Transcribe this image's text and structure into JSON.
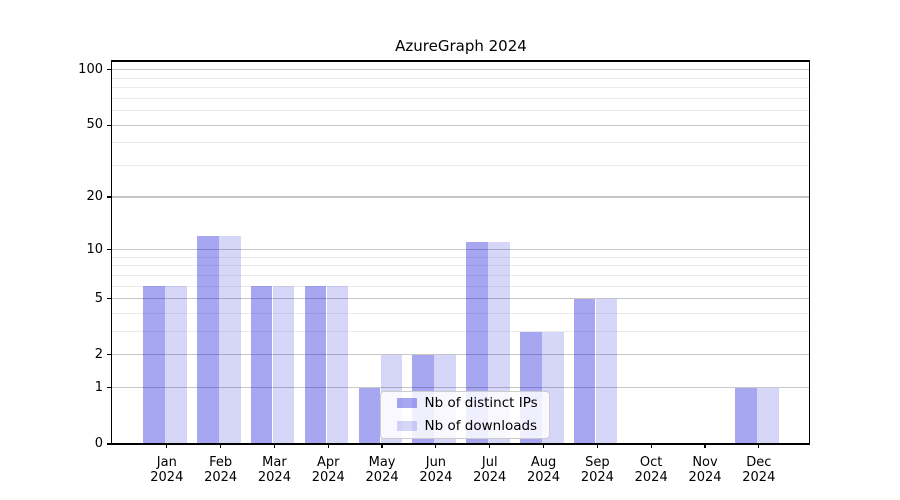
{
  "chart_data": {
    "type": "bar",
    "title": "AzureGraph 2024",
    "categories": [
      "Jan",
      "Feb",
      "Mar",
      "Apr",
      "May",
      "Jun",
      "Jul",
      "Aug",
      "Sep",
      "Oct",
      "Nov",
      "Dec"
    ],
    "category_year_label": "2024",
    "series": [
      {
        "name": "Nb of distinct IPs",
        "color": "#0000d759",
        "values": [
          6,
          12,
          6,
          6,
          1,
          2,
          11,
          3,
          5,
          0,
          0,
          1
        ]
      },
      {
        "name": "Nb of downloads",
        "color": "#0000d729",
        "values": [
          6,
          12,
          6,
          6,
          2,
          2,
          11,
          3,
          5,
          0,
          0,
          1
        ]
      }
    ],
    "xlabel": "",
    "ylabel": "",
    "yscale": "log1p",
    "ylim": [
      0,
      112
    ],
    "yticks_major": [
      0,
      1,
      2,
      5,
      10,
      20,
      50,
      100
    ],
    "yticks_minor": [
      3,
      4,
      6,
      7,
      8,
      9,
      30,
      40,
      60,
      70,
      80,
      90
    ],
    "grid": "horizontal major+minor",
    "legend_position": "lower center",
    "colors": {
      "major_grid": "#c6c6c6",
      "minor_grid": "#ebebeb",
      "spine": "#000000",
      "background": "#ffffff"
    }
  }
}
